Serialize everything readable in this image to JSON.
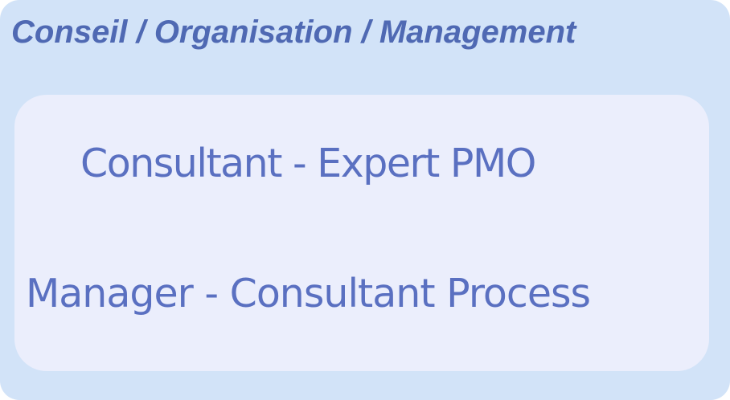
{
  "panel": {
    "title": "Conseil / Organisation / Management"
  },
  "roles": [
    {
      "label": "Consultant - Expert PMO"
    },
    {
      "label": "Manager - Consultant Process"
    }
  ],
  "colors": {
    "outer_background": "#d2e3f8",
    "inner_background": "#ebeefc",
    "title_text": "#4f69b3",
    "role_text": "#5a70c1"
  }
}
